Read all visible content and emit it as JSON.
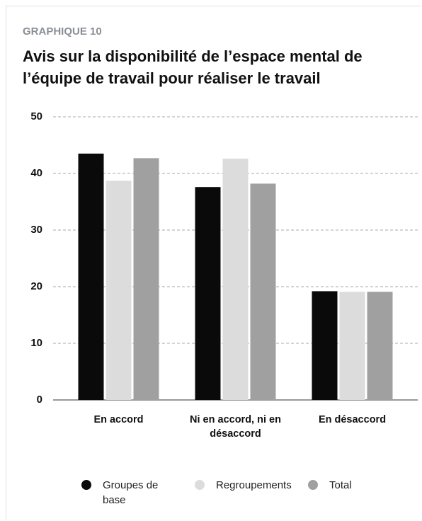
{
  "chart_data": {
    "type": "bar",
    "label": "GRAPHIQUE 10",
    "title": "Avis sur la disponibilité de l’espace mental de l’équipe de travail pour réaliser le travail",
    "categories": [
      "En accord",
      "Ni en accord, ni en désaccord",
      "En désaccord"
    ],
    "series": [
      {
        "name": "Groupes de base",
        "color": "#0a0a0a",
        "values": [
          43.5,
          37.6,
          19.2
        ]
      },
      {
        "name": "Regroupements",
        "color": "#dcdcdc",
        "values": [
          38.7,
          42.6,
          19.1
        ]
      },
      {
        "name": "Total",
        "color": "#a0a0a0",
        "values": [
          42.7,
          38.2,
          19.1
        ]
      }
    ],
    "ylim": [
      0,
      50
    ],
    "yticks": [
      0,
      10,
      20,
      30,
      40,
      50
    ],
    "grid": true
  }
}
